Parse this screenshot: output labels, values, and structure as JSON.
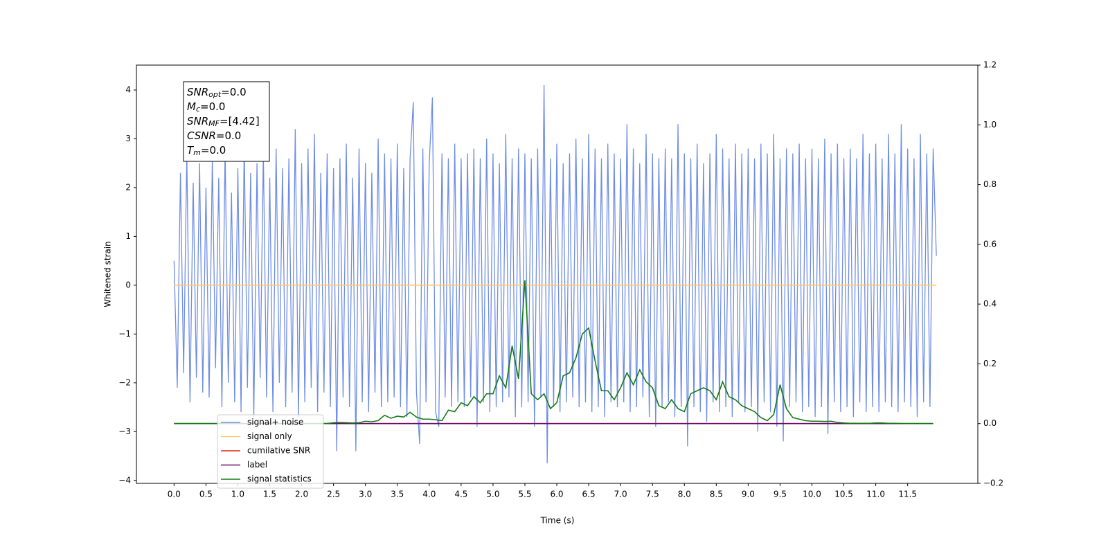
{
  "chart_data": {
    "type": "line",
    "xlabel": "Time (s)",
    "ylabel": "Whitened strain",
    "xlim": [
      -0.59,
      12.6
    ],
    "ylim": [
      -4.06,
      4.51
    ],
    "y2lim": [
      -0.2,
      1.2
    ],
    "xticks": [
      {
        "value": 0,
        "label": "0.0"
      },
      {
        "value": 0.5,
        "label": "0.5"
      },
      {
        "value": 1,
        "label": "1.0"
      },
      {
        "value": 1.5,
        "label": "1.5"
      },
      {
        "value": 2,
        "label": "2.0"
      },
      {
        "value": 2.5,
        "label": "2.5"
      },
      {
        "value": 3,
        "label": "3.0"
      },
      {
        "value": 3.5,
        "label": "3.5"
      },
      {
        "value": 4,
        "label": "4.0"
      },
      {
        "value": 4.5,
        "label": "4.5"
      },
      {
        "value": 5,
        "label": "5.0"
      },
      {
        "value": 5.5,
        "label": "5.5"
      },
      {
        "value": 6,
        "label": "6.0"
      },
      {
        "value": 6.5,
        "label": "6.5"
      },
      {
        "value": 7,
        "label": "7.0"
      },
      {
        "value": 7.5,
        "label": "7.5"
      },
      {
        "value": 8,
        "label": "8.0"
      },
      {
        "value": 8.5,
        "label": "8.5"
      },
      {
        "value": 9,
        "label": "9.0"
      },
      {
        "value": 9.5,
        "label": "9.5"
      },
      {
        "value": 10,
        "label": "10.0"
      },
      {
        "value": 10.5,
        "label": "10.5"
      },
      {
        "value": 11,
        "label": "11.0"
      },
      {
        "value": 11.5,
        "label": "11.5"
      }
    ],
    "yticks": [
      {
        "value": -4,
        "label": "−4"
      },
      {
        "value": -3,
        "label": "−3"
      },
      {
        "value": -2,
        "label": "−2"
      },
      {
        "value": -1,
        "label": "−1"
      },
      0,
      1,
      2,
      3,
      4
    ],
    "y2ticks": [
      {
        "value": -0.2,
        "label": "−0.2"
      },
      {
        "value": 0,
        "label": "0.0"
      },
      {
        "value": 0.2,
        "label": "0.2"
      },
      {
        "value": 0.4,
        "label": "0.4"
      },
      {
        "value": 0.6,
        "label": "0.6"
      },
      {
        "value": 0.8,
        "label": "0.8"
      },
      {
        "value": 1,
        "label": "1.0"
      },
      {
        "value": 1.2,
        "label": "1.2"
      }
    ],
    "legend": "lower left",
    "annotation": [
      {
        "base": "SNR",
        "sub": "opt",
        "rest": "=0.0"
      },
      {
        "base": "M",
        "sub": "c",
        "rest": "=0.0"
      },
      {
        "base": "SNR",
        "sub": "MF",
        "rest": "=[4.42]"
      },
      {
        "base": "CSNR",
        "sub": "",
        "rest": "=0.0"
      },
      {
        "base": "T",
        "sub": "m",
        "rest": "=0.0"
      }
    ],
    "series": [
      {
        "name": "signal+ noise",
        "color": "#6f8de6",
        "axis": "y",
        "x_step": 0.05,
        "values": [
          0.5,
          -2.1,
          2.3,
          -1.8,
          2.7,
          -2.4,
          2.1,
          -1.9,
          2.5,
          -2.2,
          2.0,
          -2.3,
          2.6,
          -1.7,
          2.2,
          -2.5,
          2.8,
          -2.0,
          1.9,
          -2.4,
          2.4,
          -2.6,
          2.9,
          -2.1,
          2.3,
          -2.7,
          2.5,
          -1.9,
          2.7,
          -2.3,
          2.2,
          -2.6,
          2.8,
          -2.0,
          2.4,
          -2.5,
          2.6,
          -2.2,
          3.2,
          -2.7,
          2.5,
          -2.4,
          2.8,
          -2.1,
          3.1,
          -2.6,
          2.3,
          -2.2,
          2.7,
          -2.5,
          2.4,
          -3.4,
          2.6,
          -2.3,
          2.9,
          -2.5,
          2.2,
          -3.4,
          2.8,
          -2.4,
          2.5,
          -2.6,
          2.3,
          -2.2,
          3.0,
          -2.5,
          2.7,
          -2.4,
          2.6,
          -2.3,
          2.9,
          -2.5,
          2.4,
          -2.7,
          2.6,
          3.75,
          -2.2,
          -3.25,
          2.8,
          -2.4,
          2.5,
          3.85,
          -2.6,
          -2.9,
          2.7,
          -2.3,
          2.6,
          -2.5,
          2.9,
          -2.4,
          2.6,
          -2.5,
          2.7,
          -2.3,
          2.8,
          -2.9,
          2.6,
          -2.4,
          3.0,
          -2.6,
          2.7,
          -2.5,
          2.5,
          -2.4,
          3.1,
          -2.3,
          2.6,
          -2.7,
          2.8,
          -2.5,
          2.7,
          -2.4,
          2.6,
          -2.9,
          2.8,
          -2.3,
          4.1,
          -3.65,
          2.6,
          -2.5,
          2.9,
          -2.6,
          2.5,
          -2.4,
          2.7,
          -2.3,
          3.0,
          -2.5,
          2.6,
          -2.4,
          3.1,
          -2.6,
          2.8,
          -2.5,
          2.6,
          -2.7,
          2.9,
          -2.4,
          2.7,
          -2.5,
          2.6,
          -2.4,
          3.3,
          -2.6,
          2.8,
          -2.5,
          2.5,
          -2.3,
          3.1,
          -2.7,
          2.7,
          -2.9,
          2.6,
          -2.5,
          2.8,
          -2.4,
          2.6,
          -2.7,
          3.3,
          -2.5,
          2.7,
          -3.3,
          2.6,
          -2.5,
          2.9,
          -2.6,
          2.5,
          -2.8,
          2.7,
          -2.4,
          3.1,
          -2.6,
          2.8,
          -2.5,
          2.6,
          -2.7,
          2.9,
          -2.4,
          2.7,
          -2.6,
          2.8,
          -2.5,
          2.6,
          -3.0,
          2.9,
          -2.4,
          2.7,
          -2.6,
          3.1,
          -2.9,
          2.6,
          -3.2,
          2.8,
          -2.5,
          2.7,
          -2.4,
          2.9,
          -2.6,
          2.6,
          -2.5,
          2.8,
          -2.7,
          2.6,
          -2.5,
          3.0,
          -3.05,
          2.7,
          -2.4,
          2.9,
          -2.6,
          2.6,
          -2.5,
          2.8,
          -2.7,
          2.6,
          -2.4,
          3.1,
          -2.6,
          2.7,
          -2.5,
          2.9,
          -2.6,
          2.6,
          -2.4,
          3.1,
          -2.5,
          2.7,
          -2.6,
          3.3,
          -2.4,
          2.8,
          -2.5,
          2.6,
          -2.7,
          3.1,
          -2.4,
          2.7,
          -2.5,
          2.8,
          0.6
        ]
      },
      {
        "name": "signal only",
        "color": "#ffc966",
        "axis": "y",
        "x": [
          0,
          11.95
        ],
        "values": [
          0,
          0
        ]
      },
      {
        "name": "cumilative SNR",
        "color": "#e8211d",
        "axis": "y2",
        "x": [
          0,
          11.9
        ],
        "values": [
          0,
          0
        ]
      },
      {
        "name": "label",
        "color": "#6a0a6a",
        "axis": "y2",
        "x": [
          0,
          11.9
        ],
        "values": [
          0,
          0
        ]
      },
      {
        "name": "signal statistics",
        "color": "#137a13",
        "axis": "y2",
        "x_step": 0.1,
        "values": [
          0,
          0,
          0,
          0,
          0,
          0,
          0,
          0,
          0,
          0,
          0,
          0,
          0,
          0,
          0,
          0,
          0,
          0,
          0,
          0,
          0,
          0,
          0,
          0,
          0,
          0.003,
          0.004,
          0.003,
          0.002,
          0.003,
          0.008,
          0.006,
          0.01,
          0.028,
          0.018,
          0.025,
          0.022,
          0.038,
          0.022,
          0.015,
          0.015,
          0.013,
          0.01,
          0.045,
          0.04,
          0.07,
          0.06,
          0.09,
          0.07,
          0.1,
          0.1,
          0.16,
          0.12,
          0.26,
          0.15,
          0.48,
          0.1,
          0.08,
          0.1,
          0.05,
          0.07,
          0.16,
          0.17,
          0.22,
          0.3,
          0.32,
          0.21,
          0.11,
          0.11,
          0.08,
          0.12,
          0.17,
          0.13,
          0.18,
          0.14,
          0.12,
          0.06,
          0.05,
          0.08,
          0.05,
          0.04,
          0.1,
          0.11,
          0.12,
          0.11,
          0.08,
          0.14,
          0.09,
          0.08,
          0.06,
          0.05,
          0.04,
          0.02,
          0.01,
          0.03,
          0.13,
          0.05,
          0.02,
          0.015,
          0.01,
          0.008,
          0.008,
          0.007,
          0.008,
          0.004,
          0.002,
          0.001,
          0.001,
          0.001,
          0.001,
          0.002,
          0.002,
          0.001,
          0.001,
          0,
          0,
          0,
          0,
          0,
          0
        ]
      }
    ]
  }
}
